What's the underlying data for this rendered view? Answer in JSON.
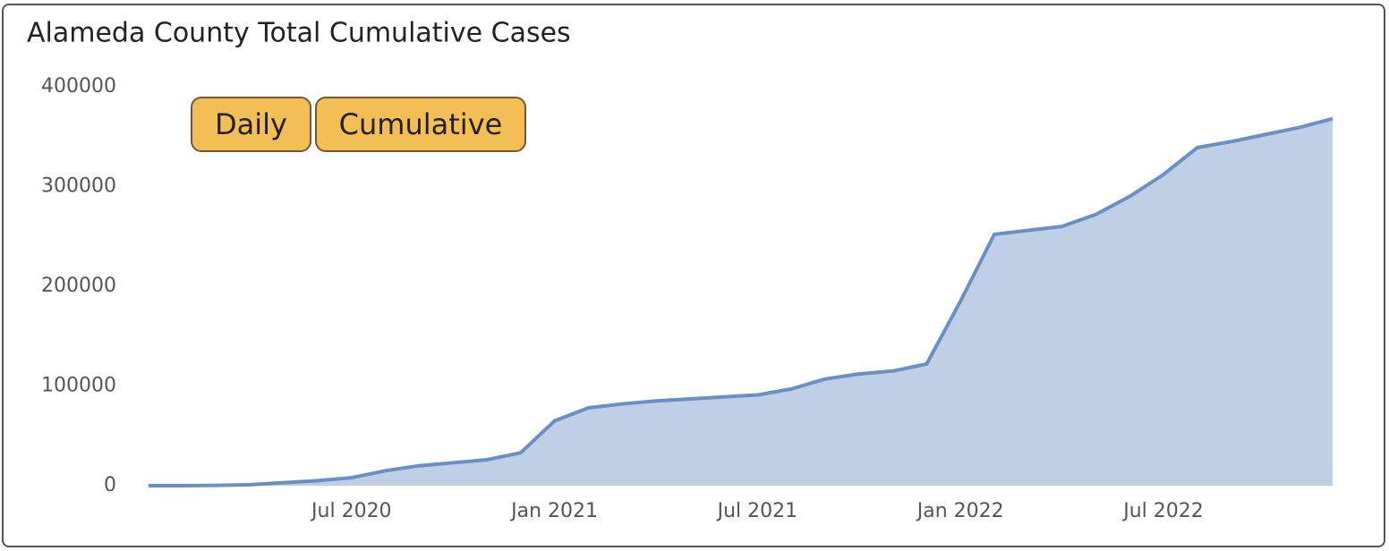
{
  "chart_data": {
    "type": "area",
    "title": "Alameda County Total Cumulative Cases",
    "buttons": [
      "Daily",
      "Cumulative"
    ],
    "x": [
      "2020-01",
      "2020-02",
      "2020-03",
      "2020-04",
      "2020-05",
      "2020-06",
      "2020-07",
      "2020-08",
      "2020-09",
      "2020-10",
      "2020-11",
      "2020-12",
      "2021-01",
      "2021-02",
      "2021-03",
      "2021-04",
      "2021-05",
      "2021-06",
      "2021-07",
      "2021-08",
      "2021-09",
      "2021-10",
      "2021-11",
      "2021-12",
      "2022-01",
      "2022-02",
      "2022-03",
      "2022-04",
      "2022-05",
      "2022-06",
      "2022-07",
      "2022-08",
      "2022-09",
      "2022-10",
      "2022-11",
      "2022-12"
    ],
    "series": [
      {
        "name": "Cumulative Cases",
        "color": "#6a8fc7",
        "fill": "#bfd0e6",
        "values": [
          0,
          0,
          300,
          1000,
          3000,
          5000,
          8000,
          15000,
          20000,
          23000,
          26000,
          33000,
          65000,
          78000,
          82000,
          85000,
          87000,
          89000,
          91000,
          97000,
          107000,
          112000,
          115000,
          122000,
          185000,
          252000,
          256000,
          260000,
          272000,
          290000,
          312000,
          339000,
          345000,
          352000,
          359000,
          368000
        ]
      }
    ],
    "xlim": [
      "2020-01",
      "2022-12"
    ],
    "xticks": [
      {
        "value": "2020-07",
        "label": "Jul 2020"
      },
      {
        "value": "2021-01",
        "label": "Jan 2021"
      },
      {
        "value": "2021-07",
        "label": "Jul 2021"
      },
      {
        "value": "2022-01",
        "label": "Jan 2022"
      },
      {
        "value": "2022-07",
        "label": "Jul 2022"
      }
    ],
    "ylim": [
      0,
      400000
    ],
    "yticks": [
      0,
      100000,
      200000,
      300000,
      400000
    ],
    "grid": false
  }
}
